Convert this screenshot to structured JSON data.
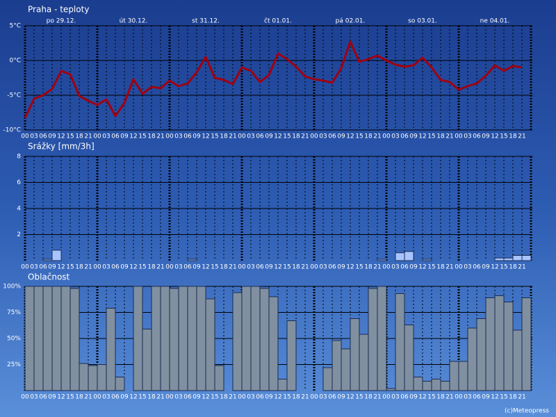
{
  "copyright": "(c)Meteopress",
  "chart_data": [
    {
      "type": "line",
      "title": "Praha - teploty",
      "color": "#a00010",
      "days": [
        "po 29.12.",
        "út 30.12.",
        "st 31.12.",
        "čt 01.01.",
        "pá 02.01.",
        "so 03.01.",
        "ne 04.01."
      ],
      "categories": [
        "00",
        "03",
        "06",
        "09",
        "12",
        "15",
        "18",
        "21",
        "00",
        "03",
        "06",
        "09",
        "12",
        "15",
        "18",
        "21",
        "00",
        "03",
        "06",
        "09",
        "12",
        "15",
        "18",
        "21",
        "00",
        "03",
        "06",
        "09",
        "12",
        "15",
        "18",
        "21",
        "00",
        "03",
        "06",
        "09",
        "12",
        "15",
        "18",
        "21",
        "00",
        "03",
        "06",
        "09",
        "12",
        "15",
        "18",
        "21",
        "00",
        "03",
        "06",
        "09",
        "12",
        "15",
        "18",
        "21"
      ],
      "values": [
        -8.3,
        -5.5,
        -5.0,
        -4.1,
        -1.5,
        -2.0,
        -5.1,
        -5.8,
        -6.4,
        -5.6,
        -8.0,
        -6.1,
        -2.7,
        -4.8,
        -3.8,
        -4.0,
        -2.9,
        -3.7,
        -3.3,
        -1.7,
        0.5,
        -2.5,
        -2.8,
        -3.4,
        -1.0,
        -1.5,
        -3.1,
        -2.1,
        1.0,
        0.2,
        -0.9,
        -2.3,
        -2.7,
        -2.9,
        -3.2,
        -1.1,
        2.7,
        -0.2,
        0.2,
        0.7,
        0.0,
        -0.6,
        -0.9,
        -0.7,
        0.4,
        -1.0,
        -2.8,
        -3.1,
        -4.2,
        -3.7,
        -3.3,
        -2.2,
        -0.7,
        -1.5,
        -0.8,
        -1.0
      ],
      "ylim": [
        -10,
        5
      ],
      "yticks": [
        {
          "value": -10,
          "label": "-10°C"
        },
        {
          "value": -5,
          "label": "-5°C"
        },
        {
          "value": 0,
          "label": "0°C"
        },
        {
          "value": 5,
          "label": "5°C"
        }
      ],
      "grid": true
    },
    {
      "type": "bar",
      "title": "Srážky [mm/3h]",
      "color": "#a8c4ff",
      "categories": [
        "00",
        "03",
        "06",
        "09",
        "12",
        "15",
        "18",
        "21",
        "00",
        "03",
        "06",
        "09",
        "12",
        "15",
        "18",
        "21",
        "00",
        "03",
        "06",
        "09",
        "12",
        "15",
        "18",
        "21",
        "00",
        "03",
        "06",
        "09",
        "12",
        "15",
        "18",
        "21",
        "00",
        "03",
        "06",
        "09",
        "12",
        "15",
        "18",
        "21",
        "00",
        "03",
        "06",
        "09",
        "12",
        "15",
        "18",
        "21",
        "00",
        "03",
        "06",
        "09",
        "12",
        "15",
        "18",
        "21"
      ],
      "values": [
        0,
        0,
        0.1,
        0.8,
        0,
        0,
        0,
        0,
        0,
        0,
        0,
        0,
        0,
        0,
        0,
        0,
        0,
        0,
        0.1,
        0,
        0,
        0,
        0,
        0,
        0,
        0,
        0,
        0,
        0,
        0,
        0,
        0,
        0,
        0,
        0,
        0,
        0,
        0,
        0,
        0.1,
        0,
        0.6,
        0.7,
        0,
        0.1,
        0,
        0,
        0,
        0,
        0,
        0,
        0,
        0.2,
        0.2,
        0.4,
        0.4
      ],
      "ylim": [
        0,
        8
      ],
      "yticks": [
        2,
        4,
        6,
        8
      ],
      "grid": true
    },
    {
      "type": "bar",
      "title": "Oblačnost",
      "color": "#8090a0",
      "categories": [
        "00",
        "03",
        "06",
        "09",
        "12",
        "15",
        "18",
        "21",
        "00",
        "03",
        "06",
        "09",
        "12",
        "15",
        "18",
        "21",
        "00",
        "03",
        "06",
        "09",
        "12",
        "15",
        "18",
        "21",
        "00",
        "03",
        "06",
        "09",
        "12",
        "15",
        "18",
        "21",
        "00",
        "03",
        "06",
        "09",
        "12",
        "15",
        "18",
        "21",
        "00",
        "03",
        "06",
        "09",
        "12",
        "15",
        "18",
        "21",
        "00",
        "03",
        "06",
        "09",
        "12",
        "15",
        "18",
        "21"
      ],
      "values": [
        100,
        100,
        100,
        100,
        100,
        98,
        26,
        24,
        25,
        79,
        13,
        0,
        100,
        59,
        100,
        100,
        98,
        100,
        100,
        100,
        88,
        24,
        0,
        94,
        100,
        100,
        98,
        90,
        11,
        67,
        0,
        0,
        0,
        22,
        48,
        40,
        69,
        54,
        98,
        100,
        2,
        93,
        63,
        13,
        9,
        11,
        9,
        28,
        28,
        60,
        69,
        89,
        91,
        85,
        58,
        89
      ],
      "ylim": [
        0,
        100
      ],
      "yticks": [
        {
          "value": 25,
          "label": "25%"
        },
        {
          "value": 50,
          "label": "50%"
        },
        {
          "value": 75,
          "label": "75%"
        },
        {
          "value": 100,
          "label": "100%"
        }
      ],
      "grid": true
    }
  ]
}
